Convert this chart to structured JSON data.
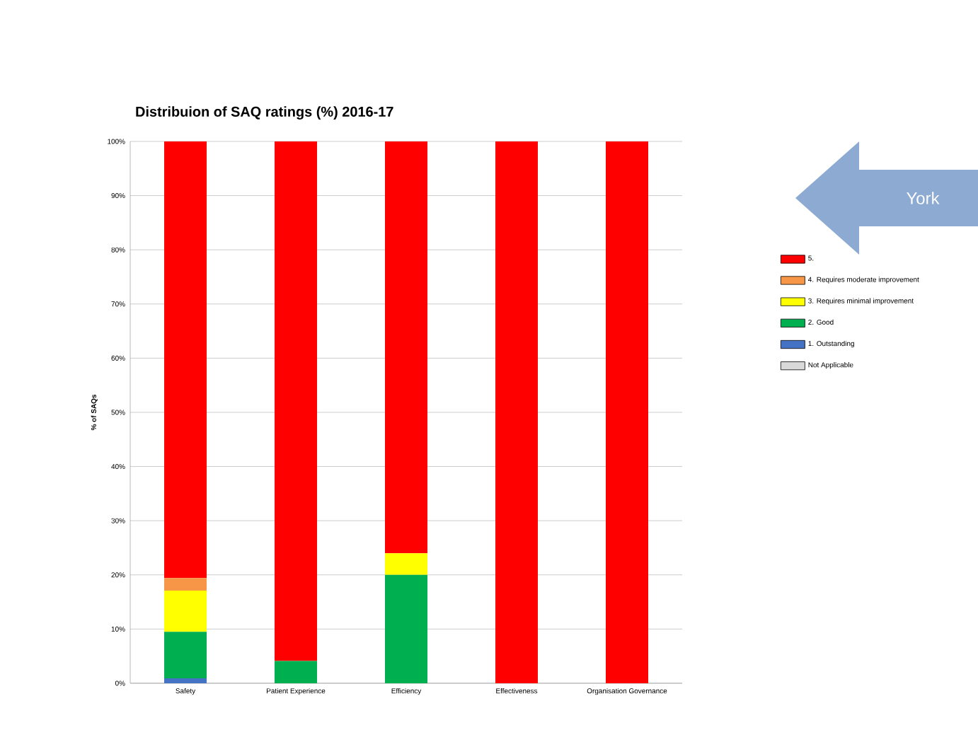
{
  "chart_data": {
    "type": "bar",
    "title": "Distribuion of SAQ ratings (%) 2016-17",
    "ylabel": "% of SAQs",
    "categories": [
      "Safety",
      "Patient Experience",
      "Efficiency",
      "Effectiveness",
      "Organisation Governance"
    ],
    "stacked": true,
    "series": [
      {
        "name": "Not Applicable",
        "color": "#d9d9d9",
        "values": [
          0,
          0,
          0,
          0,
          0
        ]
      },
      {
        "name": "1. Outstanding",
        "color": "#4472c4",
        "values": [
          0.9,
          0,
          0,
          0,
          0
        ]
      },
      {
        "name": "2. Good",
        "color": "#00b050",
        "values": [
          8.6,
          4.1,
          20,
          0,
          0
        ]
      },
      {
        "name": "3. Requires minimal improvement",
        "color": "#ffff00",
        "values": [
          7.6,
          0,
          4,
          0,
          0
        ]
      },
      {
        "name": "4. Requires moderate improvement",
        "color": "#f79646",
        "values": [
          2.3,
          0,
          0,
          0,
          0
        ]
      },
      {
        "name": "5.",
        "color": "#ff0000",
        "values": [
          80.6,
          95.9,
          76,
          100,
          100
        ]
      }
    ],
    "ylim": [
      0,
      100
    ],
    "yticks": [
      {
        "value": 0,
        "label": "0%"
      },
      {
        "value": 10,
        "label": "10%"
      },
      {
        "value": 20,
        "label": "20%"
      },
      {
        "value": 30,
        "label": "30%"
      },
      {
        "value": 40,
        "label": "40%"
      },
      {
        "value": 50,
        "label": "50%"
      },
      {
        "value": 60,
        "label": "60%"
      },
      {
        "value": 70,
        "label": "70%"
      },
      {
        "value": 80,
        "label": "80%"
      },
      {
        "value": 90,
        "label": "90%"
      },
      {
        "value": 100,
        "label": "100%"
      }
    ],
    "grid": "y",
    "legend": "right",
    "annotations": [
      "York"
    ]
  }
}
